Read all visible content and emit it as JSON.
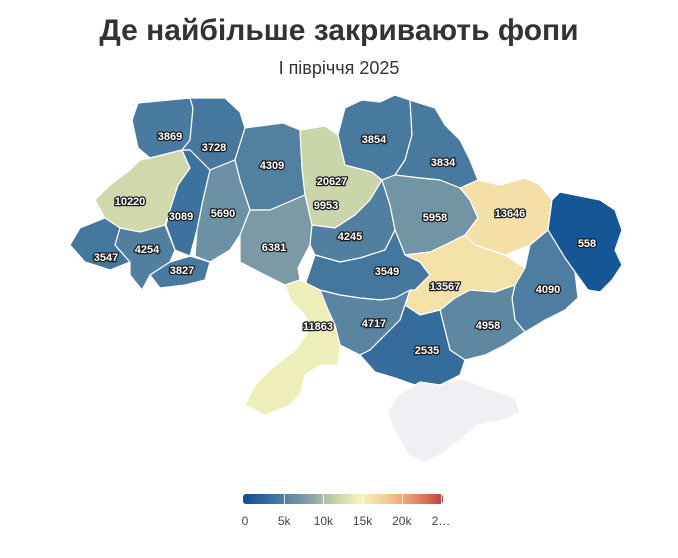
{
  "title": "Де найбільше закривають фопи",
  "subtitle": "І півріччя 2025",
  "legend": {
    "ticks": [
      "0",
      "5k",
      "10k",
      "15k",
      "20k",
      "2…"
    ],
    "colors": [
      "#0c5194",
      "#47799f",
      "#8aa4a8",
      "#c5d2a8",
      "#f4f3ba",
      "#f3cc94",
      "#e28e68",
      "#c13f3b"
    ]
  },
  "no_data_color": "#f0f0f4",
  "regions": [
    {
      "id": "volyn",
      "value": "3869"
    },
    {
      "id": "rivne",
      "value": "3728"
    },
    {
      "id": "zhytomyr",
      "value": "4309"
    },
    {
      "id": "kyiv-city",
      "value": "20627"
    },
    {
      "id": "kyiv-oblast",
      "value": "9953"
    },
    {
      "id": "chernihiv",
      "value": "3854"
    },
    {
      "id": "sumy",
      "value": "3834"
    },
    {
      "id": "lviv",
      "value": "10220"
    },
    {
      "id": "ternopil",
      "value": "3089"
    },
    {
      "id": "khmelnytskyi",
      "value": "5690"
    },
    {
      "id": "vinnytsia",
      "value": "6381"
    },
    {
      "id": "cherkasy",
      "value": "4245"
    },
    {
      "id": "poltava",
      "value": "5958"
    },
    {
      "id": "kharkiv",
      "value": "13646"
    },
    {
      "id": "luhansk",
      "value": "558"
    },
    {
      "id": "zakarpattia",
      "value": "3547"
    },
    {
      "id": "ivano-frankivsk",
      "value": "4254"
    },
    {
      "id": "chernivtsi",
      "value": "3827"
    },
    {
      "id": "kirovohrad",
      "value": "3549"
    },
    {
      "id": "dnipropetrovsk",
      "value": "13567"
    },
    {
      "id": "donetsk",
      "value": "4090"
    },
    {
      "id": "odesa",
      "value": "11863"
    },
    {
      "id": "mykolaiv",
      "value": "4717"
    },
    {
      "id": "zaporizhzhia",
      "value": "4958"
    },
    {
      "id": "kherson",
      "value": "2535"
    },
    {
      "id": "crimea",
      "value": ""
    }
  ]
}
